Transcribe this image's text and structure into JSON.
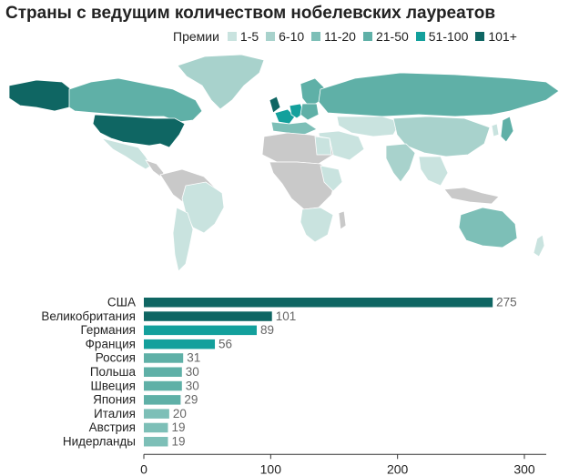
{
  "title": "Страны с ведущим количеством нобелевских лауреатов",
  "legend": {
    "label": "Премии",
    "items": [
      {
        "label": "1-5",
        "color": "#c9e3df"
      },
      {
        "label": "6-10",
        "color": "#a8d2cc"
      },
      {
        "label": "11-20",
        "color": "#7dbfb7"
      },
      {
        "label": "21-50",
        "color": "#5fb0a7"
      },
      {
        "label": "51-100",
        "color": "#13a09c"
      },
      {
        "label": "101+",
        "color": "#0f6663"
      }
    ]
  },
  "map_colors": {
    "no_data": "#c9c9c9",
    "tier_1_5": "#c9e3df",
    "tier_6_10": "#a8d2cc",
    "tier_11_20": "#7dbfb7",
    "tier_21_50": "#5fb0a7",
    "tier_51_100": "#13a09c",
    "tier_101_plus": "#0f6663"
  },
  "chart_data": {
    "type": "bar",
    "orientation": "horizontal",
    "categories": [
      "США",
      "Великобритания",
      "Германия",
      "Франция",
      "Россия",
      "Польша",
      "Швеция",
      "Япония",
      "Италия",
      "Австрия",
      "Нидерланды"
    ],
    "values": [
      275,
      101,
      89,
      56,
      31,
      30,
      30,
      29,
      20,
      19,
      19
    ],
    "colors": [
      "#0f6663",
      "#0f6663",
      "#13a09c",
      "#13a09c",
      "#5fb0a7",
      "#5fb0a7",
      "#5fb0a7",
      "#5fb0a7",
      "#7dbfb7",
      "#7dbfb7",
      "#7dbfb7"
    ],
    "xlim": [
      0,
      300
    ],
    "xticks": [
      0,
      100,
      200,
      300
    ],
    "value_color": "#666666"
  }
}
